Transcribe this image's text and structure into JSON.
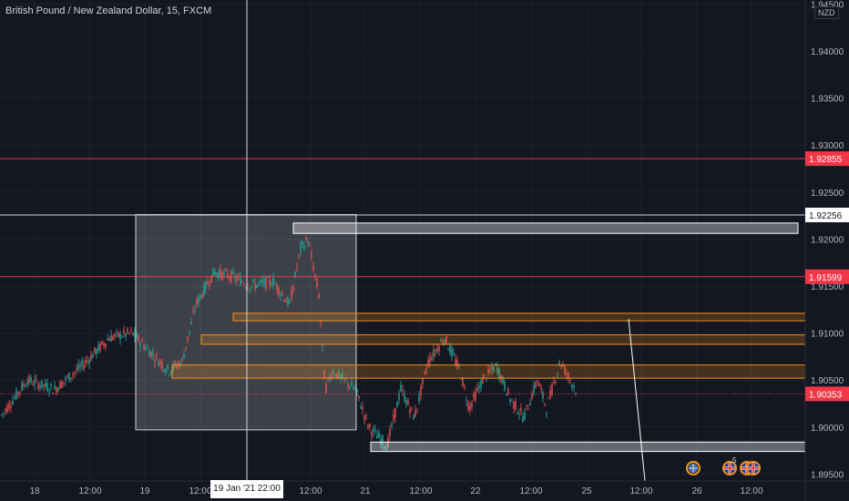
{
  "header": {
    "title": "British Pound / New Zealand Dollar, 15, FXCM",
    "currency_badge": "NZD"
  },
  "chart_data": {
    "type": "candlestick",
    "symbol": "GBPNZD",
    "timeframe": "15",
    "source": "FXCM",
    "y_axis": {
      "range": [
        1.8945,
        1.9452
      ],
      "ticks": [
        "1.89500",
        "1.90000",
        "1.90500",
        "1.91000",
        "1.91500",
        "1.92000",
        "1.92500",
        "1.93000",
        "1.93500",
        "1.94000",
        "1.94500"
      ]
    },
    "x_axis": {
      "tick_labels": [
        "18",
        "12:00",
        "19",
        "12:00",
        "12:00",
        "21",
        "12:00",
        "22",
        "12:00",
        "25",
        "12:00",
        "26",
        "12:00"
      ]
    },
    "crosshair": {
      "date_label": "19 Jan '21   22:00"
    },
    "price_labels": [
      {
        "value": "1.92855",
        "color": "#f23645"
      },
      {
        "value": "1.92256",
        "color": "#ffffff"
      },
      {
        "value": "1.91599",
        "color": "#f23645"
      },
      {
        "value": "1.90353",
        "color": "#f23645"
      }
    ],
    "horizontal_lines": [
      {
        "price": 1.92855,
        "color": "#f23645"
      },
      {
        "price": 1.92256,
        "color": "#ffffff"
      },
      {
        "price": 1.91599,
        "color": "#f23645"
      }
    ],
    "last_price": 1.90353,
    "zones": [
      {
        "kind": "supply",
        "color": "#ffffff",
        "top": 1.9217,
        "bottom": 1.9206
      },
      {
        "kind": "orange",
        "color": "#f7931a",
        "top": 1.9121,
        "bottom": 1.9113
      },
      {
        "kind": "orange",
        "color": "#f7931a",
        "top": 1.9098,
        "bottom": 1.9088
      },
      {
        "kind": "orange",
        "color": "#f7931a",
        "top": 1.9066,
        "bottom": 1.9052
      },
      {
        "kind": "demand",
        "color": "#ffffff",
        "top": 1.8984,
        "bottom": 1.8974
      }
    ],
    "range_box": {
      "top": 1.9226,
      "bottom": 1.8997
    },
    "colors": {
      "up": "#26a69a",
      "down": "#ef5350",
      "background": "#131722",
      "grid": "#1e222d"
    }
  },
  "events": [
    {
      "icon": "globe-event-icon"
    },
    {
      "icon": "uk-flag-event-icon",
      "badge": "5"
    },
    {
      "icon": "uk-flag-event-icon"
    },
    {
      "icon": "uk-flag-event-icon"
    }
  ]
}
